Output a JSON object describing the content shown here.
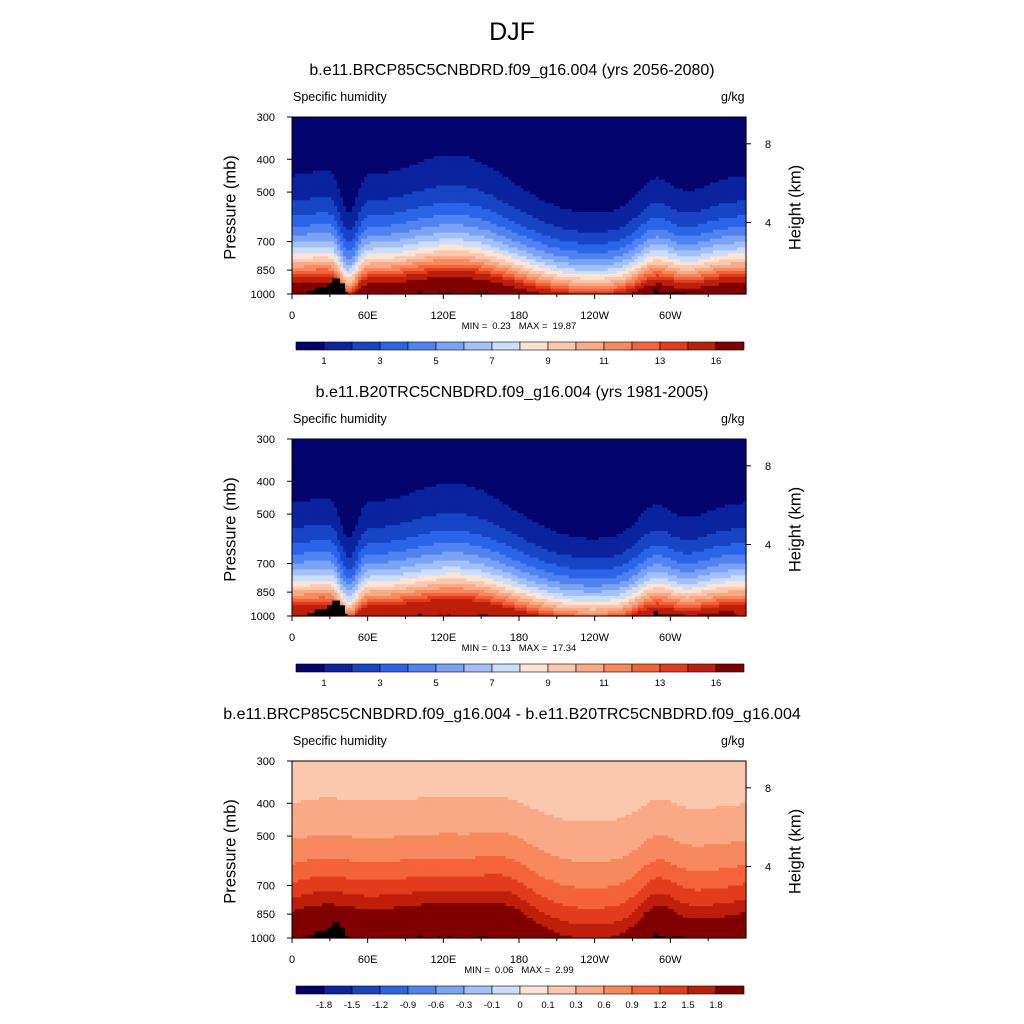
{
  "figure": {
    "title": "DJF",
    "colors": {
      "seq": [
        "#04046f",
        "#0a239e",
        "#1745c6",
        "#2b64e8",
        "#5082f1",
        "#7aa2f5",
        "#a3c1f8",
        "#cbddfb",
        "#fde4d2",
        "#fbc8ae",
        "#f9a985",
        "#f7895d",
        "#f4633a",
        "#e23c1c",
        "#be1f0b",
        "#800000"
      ],
      "div": [
        "#04046f",
        "#0a239e",
        "#1745c6",
        "#2b64e8",
        "#5082f1",
        "#7aa2f5",
        "#a3c1f8",
        "#cbddfb",
        "#fde4d2",
        "#fbc8ae",
        "#f9a985",
        "#f7895d",
        "#f4633a",
        "#e23c1c",
        "#be1f0b",
        "#800000"
      ],
      "terrain": "#000000"
    }
  },
  "chart_data": [
    {
      "type": "heatmap",
      "title": "b.e11.BRCP85C5CNBDRD.f09_g16.004 (yrs 2056-2080)",
      "left_string": "Specific humidity",
      "right_string": "g/kg",
      "ylabel": "Pressure (mb)",
      "ylabel_right": "Height (km)",
      "x_ticks": [
        "0",
        "60E",
        "120E",
        "180",
        "120W",
        "60W"
      ],
      "x_range_deg": [
        0,
        360
      ],
      "y_ticks": [
        "300",
        "400",
        "500",
        "700",
        "850",
        "1000"
      ],
      "y_ticks_right": [
        "8",
        "4"
      ],
      "y_range_mb": [
        1000,
        300
      ],
      "min_label": "MIN =",
      "min_value": "0.23",
      "max_label": "MAX =",
      "max_value": "19.87",
      "colorbar_labels": [
        "1",
        "3",
        "5",
        "7",
        "9",
        "11",
        "13",
        "16"
      ],
      "colorbar_levels": [
        1,
        2,
        3,
        4,
        5,
        6,
        7,
        8,
        9,
        10,
        11,
        12,
        13,
        14,
        16
      ],
      "field": "mean",
      "scale": 1.0
    },
    {
      "type": "heatmap",
      "title": "b.e11.B20TRC5CNBDRD.f09_g16.004 (yrs 1981-2005)",
      "left_string": "Specific humidity",
      "right_string": "g/kg",
      "ylabel": "Pressure (mb)",
      "ylabel_right": "Height (km)",
      "x_ticks": [
        "0",
        "60E",
        "120E",
        "180",
        "120W",
        "60W"
      ],
      "x_range_deg": [
        0,
        360
      ],
      "y_ticks": [
        "300",
        "400",
        "500",
        "700",
        "850",
        "1000"
      ],
      "y_ticks_right": [
        "8",
        "4"
      ],
      "y_range_mb": [
        1000,
        300
      ],
      "min_label": "MIN =",
      "min_value": "0.13",
      "max_label": "MAX =",
      "max_value": "17.34",
      "colorbar_labels": [
        "1",
        "3",
        "5",
        "7",
        "9",
        "11",
        "13",
        "16"
      ],
      "colorbar_levels": [
        1,
        2,
        3,
        4,
        5,
        6,
        7,
        8,
        9,
        10,
        11,
        12,
        13,
        14,
        16
      ],
      "field": "mean",
      "scale": 0.87
    },
    {
      "type": "heatmap",
      "title": "b.e11.BRCP85C5CNBDRD.f09_g16.004 - b.e11.B20TRC5CNBDRD.f09_g16.004",
      "left_string": "Specific humidity",
      "right_string": "g/kg",
      "ylabel": "Pressure (mb)",
      "ylabel_right": "Height (km)",
      "x_ticks": [
        "0",
        "60E",
        "120E",
        "180",
        "120W",
        "60W"
      ],
      "x_range_deg": [
        0,
        360
      ],
      "y_ticks": [
        "300",
        "400",
        "500",
        "700",
        "850",
        "1000"
      ],
      "y_ticks_right": [
        "8",
        "4"
      ],
      "y_range_mb": [
        1000,
        300
      ],
      "min_label": "MIN =",
      "min_value": "0.06",
      "max_label": "MAX =",
      "max_value": "2.99",
      "colorbar_labels": [
        "-1.8",
        "-1.5",
        "-1.2",
        "-0.9",
        "-0.6",
        "-0.3",
        "-0.1",
        "0",
        "0.1",
        "0.3",
        "0.6",
        "0.9",
        "1.2",
        "1.5",
        "1.8"
      ],
      "colorbar_levels": [
        -1.8,
        -1.5,
        -1.2,
        -0.9,
        -0.6,
        -0.3,
        -0.1,
        0,
        0.1,
        0.3,
        0.6,
        0.9,
        1.2,
        1.5,
        1.8
      ],
      "field": "diff",
      "scale": 1.0
    }
  ]
}
